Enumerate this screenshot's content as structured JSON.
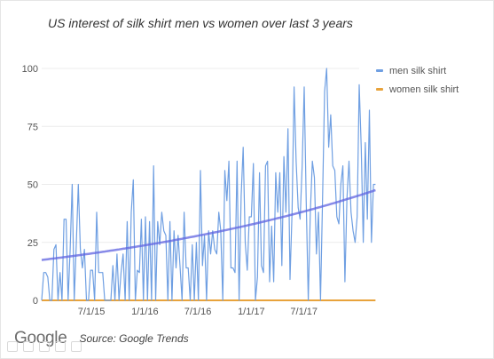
{
  "title": "US interest of silk shirt men vs women over last 3 years",
  "footer": {
    "logo": "Google",
    "source": "Source: Google Trends"
  },
  "colors": {
    "men": "#6f9fe2",
    "women": "#e8a33c",
    "trend": "#5f63e0",
    "grid": "#ececec",
    "axis": "#aaaaaa"
  },
  "chart_data": {
    "type": "line",
    "title": "US interest of silk shirt men vs women over last 3 years",
    "xlabel": "",
    "ylabel": "",
    "ylim": [
      0,
      100
    ],
    "yticks": [
      0,
      25,
      50,
      75,
      100
    ],
    "x_range": [
      "2015-01-11",
      "2018-01-07"
    ],
    "xticks": [
      {
        "date": "2015-07-01",
        "label": "7/1/15"
      },
      {
        "date": "2016-01-01",
        "label": "1/1/16"
      },
      {
        "date": "2016-07-01",
        "label": "7/1/16"
      },
      {
        "date": "2017-01-01",
        "label": "1/1/17"
      },
      {
        "date": "2017-07-01",
        "label": "7/1/17"
      }
    ],
    "grid": true,
    "legend": "right",
    "series": [
      {
        "name": "men silk shirt",
        "start_date": "2015-01-11",
        "interval": "weekly",
        "values": [
          0,
          12,
          12,
          10,
          0,
          0,
          22,
          24,
          0,
          12,
          0,
          35,
          35,
          0,
          22,
          50,
          0,
          24,
          50,
          22,
          14,
          22,
          0,
          0,
          13,
          13,
          0,
          38,
          12,
          12,
          12,
          0,
          0,
          0,
          0,
          15,
          0,
          20,
          0,
          12,
          20,
          0,
          34,
          0,
          38,
          52,
          0,
          13,
          12,
          35,
          0,
          36,
          0,
          34,
          0,
          58,
          0,
          34,
          24,
          38,
          30,
          28,
          0,
          34,
          0,
          30,
          14,
          28,
          14,
          0,
          38,
          14,
          14,
          0,
          24,
          0,
          25,
          0,
          56,
          15,
          28,
          0,
          30,
          20,
          30,
          22,
          20,
          38,
          30,
          0,
          56,
          43,
          60,
          14,
          14,
          12,
          60,
          0,
          45,
          66,
          25,
          13,
          36,
          36,
          59,
          0,
          10,
          55,
          15,
          12,
          58,
          60,
          8,
          32,
          8,
          55,
          38,
          55,
          15,
          62,
          38,
          74,
          9,
          38,
          92,
          60,
          40,
          35,
          58,
          92,
          42,
          0,
          38,
          60,
          53,
          20,
          38,
          0,
          44,
          90,
          100,
          66,
          80,
          58,
          56,
          36,
          33,
          50,
          58,
          8,
          44,
          60,
          38,
          30,
          25,
          36,
          93,
          66,
          25,
          68,
          35,
          82,
          25,
          50,
          50
        ],
        "trendline": "exponential"
      },
      {
        "name": "women silk shirt",
        "start_date": "2015-01-11",
        "interval": "weekly",
        "constant_value": 0
      }
    ]
  }
}
